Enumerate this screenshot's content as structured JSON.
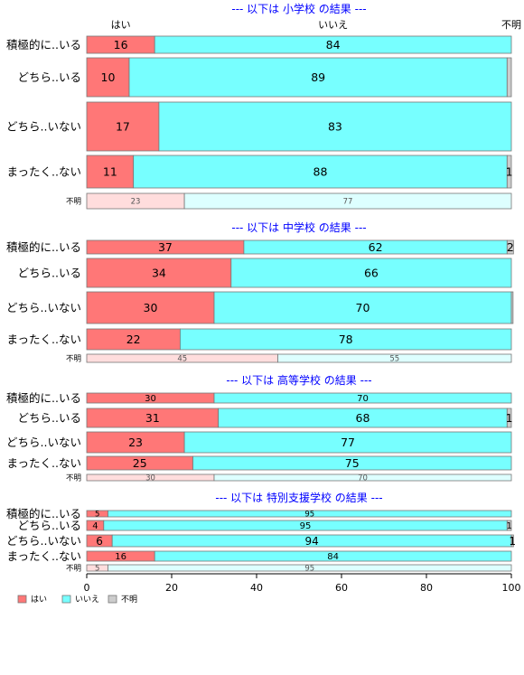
{
  "chart_data": {
    "type": "bar",
    "orientation": "horizontal",
    "stacked": true,
    "xlim": [
      0,
      100
    ],
    "x_ticks": [
      "0",
      "20",
      "40",
      "60",
      "80",
      "100"
    ],
    "column_headers": [
      "はい",
      "いいえ",
      "不明"
    ],
    "legend": {
      "placement": "bottom-left",
      "entries": [
        "はい",
        "いいえ",
        "不明"
      ]
    },
    "colors": {
      "はい": "#ff7777",
      "いいえ": "#77ffff",
      "不明": "#cccccc",
      "はい_light": "#ffdddd",
      "いいえ_light": "#ddffff",
      "border": "#777777",
      "title": "#0000ff"
    },
    "panels": [
      {
        "title": "--- 以下は 小学校 の結果 ---",
        "rows": [
          {
            "label": "積極的に..いる",
            "values": [
              16,
              84,
              0
            ],
            "labels": [
              "16",
              "84",
              ""
            ]
          },
          {
            "label": "どちら..いる",
            "values": [
              10,
              89,
              1
            ],
            "labels": [
              "10",
              "89",
              ""
            ]
          },
          {
            "label": "どちら..いない",
            "values": [
              17,
              83,
              0
            ],
            "labels": [
              "17",
              "83",
              ""
            ]
          },
          {
            "label": "まったく..ない",
            "values": [
              11,
              88,
              1
            ],
            "labels": [
              "11",
              "88",
              "1"
            ]
          },
          {
            "label": "不明",
            "small": true,
            "values": [
              23,
              77,
              0
            ],
            "labels": [
              "23",
              "77",
              ""
            ]
          }
        ]
      },
      {
        "title": "--- 以下は 中学校 の結果 ---",
        "rows": [
          {
            "label": "積極的に..いる",
            "values": [
              37,
              62,
              1.5
            ],
            "labels": [
              "37",
              "62",
              "2"
            ]
          },
          {
            "label": "どちら..いる",
            "values": [
              34,
              66,
              0
            ],
            "labels": [
              "34",
              "66",
              ""
            ]
          },
          {
            "label": "どちら..いない",
            "values": [
              30,
              70,
              0.4
            ],
            "labels": [
              "30",
              "70",
              ""
            ]
          },
          {
            "label": "まったく..ない",
            "values": [
              22,
              78,
              0
            ],
            "labels": [
              "22",
              "78",
              ""
            ]
          },
          {
            "label": "不明",
            "small": true,
            "values": [
              45,
              55,
              0
            ],
            "labels": [
              "45",
              "55",
              ""
            ]
          }
        ]
      },
      {
        "title": "--- 以下は 高等学校 の結果 ---",
        "rows": [
          {
            "label": "積極的に..いる",
            "values": [
              30,
              70,
              0
            ],
            "labels": [
              "30",
              "70",
              ""
            ]
          },
          {
            "label": "どちら..いる",
            "values": [
              31,
              68,
              1
            ],
            "labels": [
              "31",
              "68",
              "1"
            ]
          },
          {
            "label": "どちら..いない",
            "values": [
              23,
              77,
              0
            ],
            "labels": [
              "23",
              "77",
              ""
            ]
          },
          {
            "label": "まったく..ない",
            "values": [
              25,
              75,
              0
            ],
            "labels": [
              "25",
              "75",
              ""
            ]
          },
          {
            "label": "不明",
            "small": true,
            "values": [
              30,
              70,
              0
            ],
            "labels": [
              "30",
              "70",
              ""
            ]
          }
        ]
      },
      {
        "title": "--- 以下は 特別支援学校 の結果 ---",
        "rows": [
          {
            "label": "積極的に..いる",
            "values": [
              5,
              95,
              0
            ],
            "labels": [
              "5",
              "95",
              ""
            ],
            "small_values": true
          },
          {
            "label": "どちら..いる",
            "values": [
              4,
              95,
              1
            ],
            "labels": [
              "4",
              "95",
              "1"
            ]
          },
          {
            "label": "どちら..いない",
            "values": [
              6,
              94,
              0.5
            ],
            "labels": [
              "6",
              "94",
              "1"
            ]
          },
          {
            "label": "まったく..ない",
            "values": [
              16,
              84,
              0
            ],
            "labels": [
              "16",
              "84",
              ""
            ]
          },
          {
            "label": "不明",
            "small": true,
            "values": [
              5,
              95,
              0
            ],
            "labels": [
              "5",
              "95",
              ""
            ]
          }
        ]
      }
    ]
  }
}
